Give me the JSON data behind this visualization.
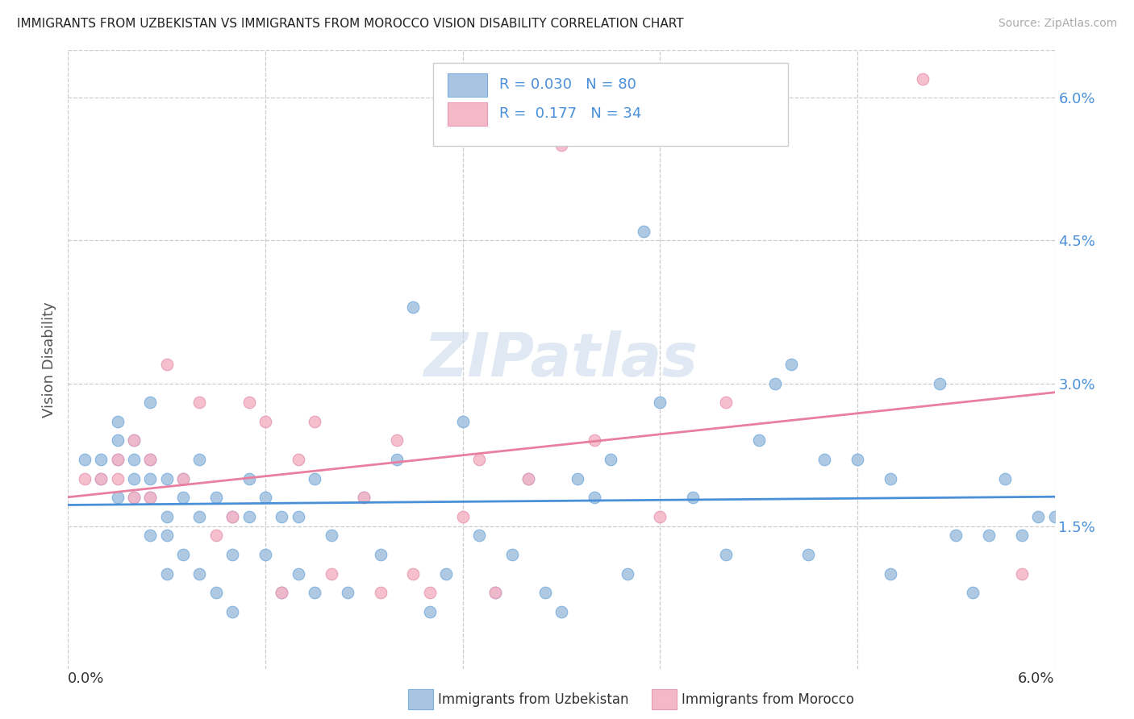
{
  "title": "IMMIGRANTS FROM UZBEKISTAN VS IMMIGRANTS FROM MOROCCO VISION DISABILITY CORRELATION CHART",
  "source": "Source: ZipAtlas.com",
  "ylabel": "Vision Disability",
  "xlim": [
    0.0,
    0.06
  ],
  "ylim": [
    0.0,
    0.065
  ],
  "yticks": [
    0.015,
    0.03,
    0.045,
    0.06
  ],
  "ytick_labels": [
    "1.5%",
    "3.0%",
    "4.5%",
    "6.0%"
  ],
  "xticks": [
    0.0,
    0.012,
    0.024,
    0.036,
    0.048,
    0.06
  ],
  "xtick_labels": [
    "0.0%",
    "",
    "",
    "",
    "",
    "6.0%"
  ],
  "color_uzbekistan": "#a8c4e0",
  "color_morocco": "#f4b8c8",
  "line_color_uzbekistan": "#4a90d9",
  "line_color_morocco": "#e87fa0",
  "edge_uzbekistan": "#7aafe0",
  "edge_morocco": "#e899b4",
  "uzbekistan_x": [
    0.001,
    0.002,
    0.002,
    0.003,
    0.003,
    0.003,
    0.003,
    0.004,
    0.004,
    0.004,
    0.004,
    0.005,
    0.005,
    0.005,
    0.005,
    0.005,
    0.006,
    0.006,
    0.006,
    0.006,
    0.007,
    0.007,
    0.007,
    0.008,
    0.008,
    0.008,
    0.009,
    0.009,
    0.01,
    0.01,
    0.01,
    0.011,
    0.011,
    0.012,
    0.012,
    0.013,
    0.013,
    0.014,
    0.014,
    0.015,
    0.015,
    0.016,
    0.017,
    0.018,
    0.019,
    0.02,
    0.021,
    0.022,
    0.023,
    0.024,
    0.025,
    0.026,
    0.027,
    0.028,
    0.029,
    0.03,
    0.031,
    0.032,
    0.033,
    0.034,
    0.035,
    0.036,
    0.038,
    0.04,
    0.042,
    0.043,
    0.044,
    0.045,
    0.046,
    0.048,
    0.05,
    0.05,
    0.053,
    0.054,
    0.055,
    0.056,
    0.057,
    0.058,
    0.059,
    0.06
  ],
  "uzbekistan_y": [
    0.022,
    0.02,
    0.022,
    0.018,
    0.022,
    0.024,
    0.026,
    0.018,
    0.02,
    0.022,
    0.024,
    0.014,
    0.018,
    0.02,
    0.022,
    0.028,
    0.01,
    0.014,
    0.016,
    0.02,
    0.012,
    0.018,
    0.02,
    0.01,
    0.016,
    0.022,
    0.008,
    0.018,
    0.006,
    0.012,
    0.016,
    0.016,
    0.02,
    0.012,
    0.018,
    0.008,
    0.016,
    0.01,
    0.016,
    0.008,
    0.02,
    0.014,
    0.008,
    0.018,
    0.012,
    0.022,
    0.038,
    0.006,
    0.01,
    0.026,
    0.014,
    0.008,
    0.012,
    0.02,
    0.008,
    0.006,
    0.02,
    0.018,
    0.022,
    0.01,
    0.046,
    0.028,
    0.018,
    0.012,
    0.024,
    0.03,
    0.032,
    0.012,
    0.022,
    0.022,
    0.02,
    0.01,
    0.03,
    0.014,
    0.008,
    0.014,
    0.02,
    0.014,
    0.016,
    0.016
  ],
  "morocco_x": [
    0.001,
    0.002,
    0.003,
    0.003,
    0.004,
    0.004,
    0.005,
    0.005,
    0.006,
    0.007,
    0.008,
    0.009,
    0.01,
    0.011,
    0.012,
    0.013,
    0.014,
    0.015,
    0.016,
    0.018,
    0.019,
    0.02,
    0.021,
    0.022,
    0.024,
    0.025,
    0.026,
    0.028,
    0.03,
    0.032,
    0.036,
    0.04,
    0.052,
    0.058
  ],
  "morocco_y": [
    0.02,
    0.02,
    0.02,
    0.022,
    0.018,
    0.024,
    0.018,
    0.022,
    0.032,
    0.02,
    0.028,
    0.014,
    0.016,
    0.028,
    0.026,
    0.008,
    0.022,
    0.026,
    0.01,
    0.018,
    0.008,
    0.024,
    0.01,
    0.008,
    0.016,
    0.022,
    0.008,
    0.02,
    0.055,
    0.024,
    0.016,
    0.028,
    0.062,
    0.01
  ]
}
